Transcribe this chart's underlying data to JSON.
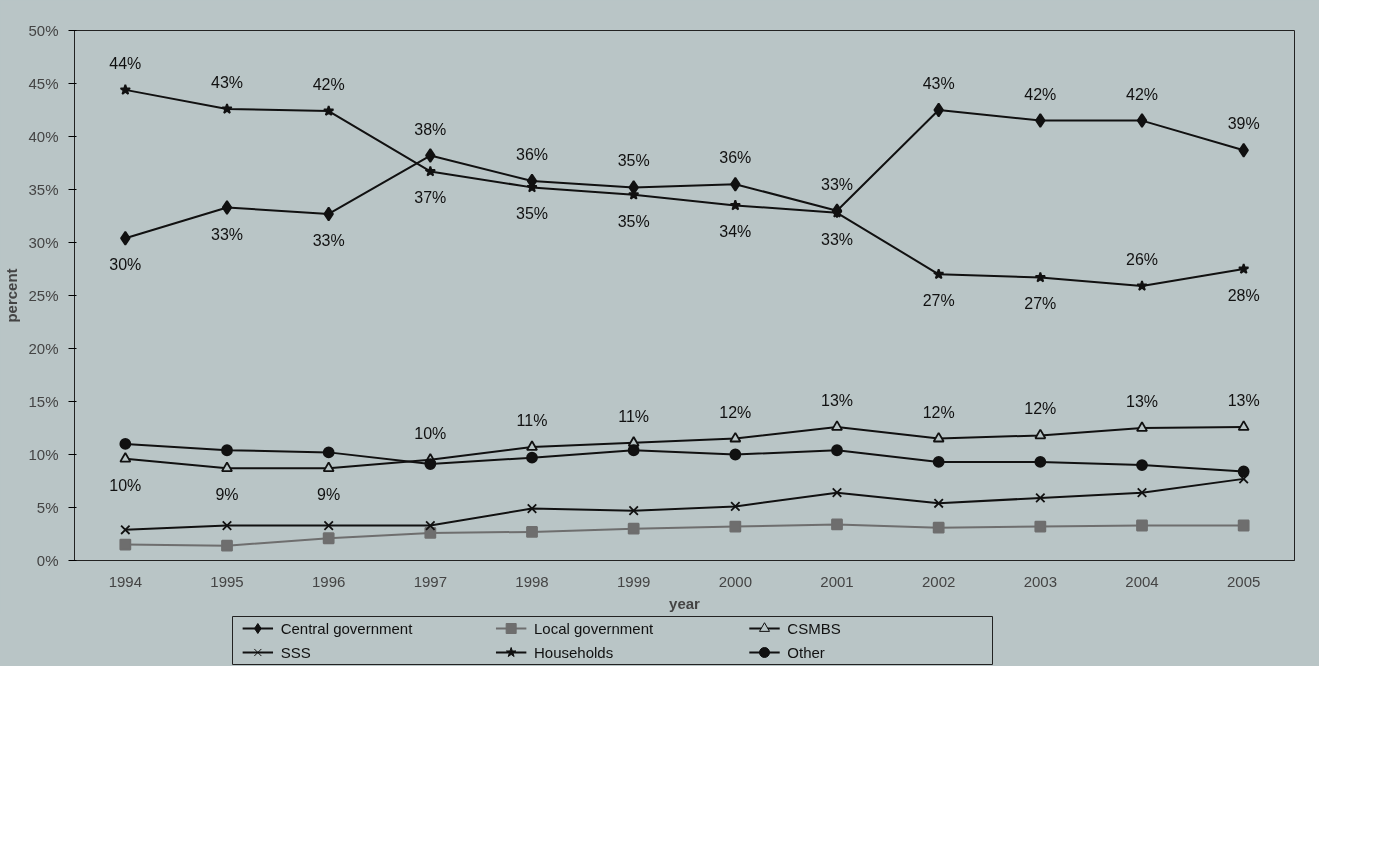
{
  "chart_data": {
    "type": "line",
    "xlabel": "year",
    "ylabel": "percent",
    "x": [
      1994,
      1995,
      1996,
      1997,
      1998,
      1999,
      2000,
      2001,
      2002,
      2003,
      2004,
      2005
    ],
    "xlim": [
      1993.5,
      2005.5
    ],
    "xticks": [
      1994,
      1995,
      1996,
      1997,
      1998,
      1999,
      2000,
      2001,
      2002,
      2003,
      2004,
      2005
    ],
    "ylim": [
      0,
      50
    ],
    "yticks": [
      {
        "value": 0,
        "label": "0%"
      },
      {
        "value": 5,
        "label": "5%"
      },
      {
        "value": 10,
        "label": "10%"
      },
      {
        "value": 15,
        "label": "15%"
      },
      {
        "value": 20,
        "label": "20%"
      },
      {
        "value": 25,
        "label": "25%"
      },
      {
        "value": 30,
        "label": "30%"
      },
      {
        "value": 35,
        "label": "35%"
      },
      {
        "value": 40,
        "label": "40%"
      },
      {
        "value": 45,
        "label": "45%"
      },
      {
        "value": 50,
        "label": "50%"
      }
    ],
    "grid": false,
    "legend": "bottom",
    "line_style": "solid",
    "series": [
      {
        "name": "Central government",
        "color": "#111111",
        "marker": "diamond",
        "values": [
          30.4,
          33.3,
          32.7,
          38.2,
          35.8,
          35.2,
          35.5,
          33.0,
          42.5,
          41.5,
          41.5,
          38.7
        ],
        "value_labels": [
          "30%",
          "33%",
          "33%",
          "38%",
          "36%",
          "35%",
          "36%",
          "33%",
          "43%",
          "42%",
          "42%",
          "39%"
        ]
      },
      {
        "name": "Local government",
        "color": "#6e6e6e",
        "marker": "square",
        "values": [
          1.5,
          1.4,
          2.1,
          2.6,
          2.7,
          3.0,
          3.2,
          3.4,
          3.1,
          3.2,
          3.3,
          3.3
        ]
      },
      {
        "name": "CSMBS",
        "color": "#111111",
        "marker": "triangle",
        "values": [
          9.6,
          8.7,
          8.7,
          9.5,
          10.7,
          11.1,
          11.5,
          12.6,
          11.5,
          11.8,
          12.5,
          12.6
        ],
        "value_labels": [
          "10%",
          "9%",
          "9%",
          "10%",
          "11%",
          "11%",
          "12%",
          "13%",
          "12%",
          "12%",
          "13%",
          "13%"
        ]
      },
      {
        "name": "SSS",
        "color": "#111111",
        "marker": "cross",
        "values": [
          2.9,
          3.3,
          3.3,
          3.3,
          4.9,
          4.7,
          5.1,
          6.4,
          5.4,
          5.9,
          6.4,
          7.7
        ]
      },
      {
        "name": "Households",
        "color": "#111111",
        "marker": "star",
        "values": [
          44.4,
          42.6,
          42.4,
          36.7,
          35.2,
          34.5,
          33.5,
          32.8,
          27.0,
          26.7,
          25.9,
          27.5
        ],
        "value_labels": [
          "44%",
          "43%",
          "42%",
          "37%",
          "35%",
          "35%",
          "34%",
          "33%",
          "27%",
          "27%",
          "26%",
          "28%"
        ]
      },
      {
        "name": "Other",
        "color": "#111111",
        "marker": "circle",
        "values": [
          11.0,
          10.4,
          10.2,
          9.1,
          9.7,
          10.4,
          10.0,
          10.4,
          9.3,
          9.3,
          9.0,
          8.4
        ]
      }
    ]
  }
}
